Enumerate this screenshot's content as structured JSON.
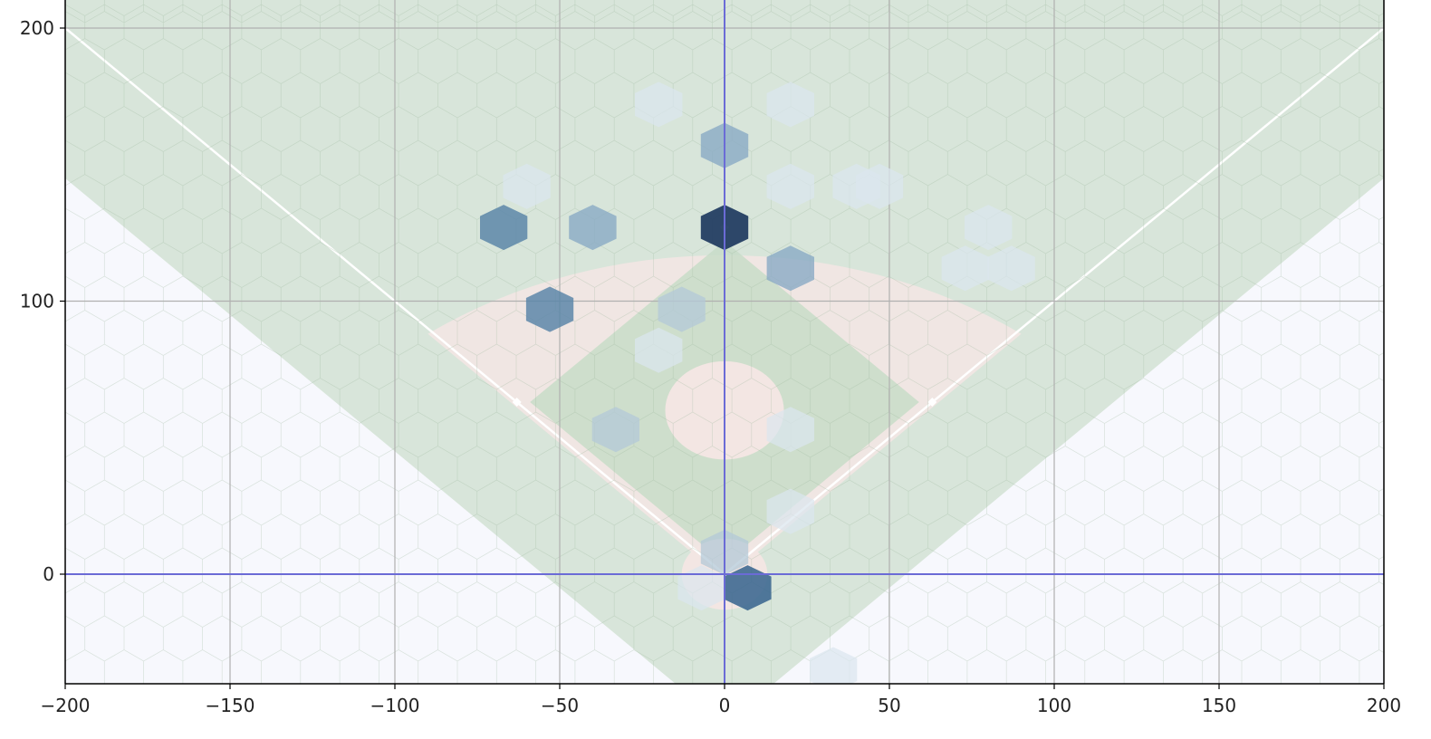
{
  "chart_data": {
    "type": "hexbin",
    "title": "",
    "xlabel": "",
    "ylabel": "",
    "xlim": [
      -200,
      200
    ],
    "ylim": [
      -40,
      210
    ],
    "grid": true,
    "x_ticks": [
      -200,
      -150,
      -100,
      -50,
      0,
      50,
      100,
      150,
      200
    ],
    "x_tick_labels": [
      "−200",
      "−150",
      "−100",
      "−50",
      "0",
      "50",
      "100",
      "150",
      "200"
    ],
    "y_ticks": [
      0,
      100,
      200
    ],
    "y_tick_labels": [
      "0",
      "100",
      "200"
    ],
    "reference_lines": {
      "x": 0,
      "y": 0,
      "color": "#6b6bd6"
    },
    "field": {
      "grass_color": "#c8dcc8",
      "dirt_color": "#f3e6e3",
      "background_color": "#f7f8fd",
      "line_color": "#ffffff",
      "foul_line_end": 200,
      "infield_arc_radius": 155,
      "mound": {
        "x": 0,
        "y": 60,
        "r": 18
      },
      "home_plate_circle": {
        "x": 0,
        "y": 0,
        "r": 13
      },
      "bases": [
        {
          "x": 63,
          "y": 63
        },
        {
          "x": 0,
          "y": 127
        },
        {
          "x": -63,
          "y": 63
        }
      ]
    },
    "hexbin": {
      "cell_radius": 8.3,
      "colormap": [
        "#dbe6ee",
        "#b4c9d8",
        "#8aaac4",
        "#5a86a8",
        "#3a6690",
        "#1e3a60"
      ],
      "bins": [
        {
          "x": -20,
          "y": 172,
          "count": 1
        },
        {
          "x": 20,
          "y": 172,
          "count": 1
        },
        {
          "x": 0,
          "y": 157,
          "count": 3
        },
        {
          "x": -60,
          "y": 142,
          "count": 1
        },
        {
          "x": 20,
          "y": 142,
          "count": 1
        },
        {
          "x": 40,
          "y": 142,
          "count": 1
        },
        {
          "x": 47,
          "y": 142,
          "count": 1
        },
        {
          "x": -67,
          "y": 127,
          "count": 4
        },
        {
          "x": -40,
          "y": 127,
          "count": 3
        },
        {
          "x": 0,
          "y": 127,
          "count": 6
        },
        {
          "x": 80,
          "y": 127,
          "count": 1
        },
        {
          "x": 20,
          "y": 112,
          "count": 3
        },
        {
          "x": 73,
          "y": 112,
          "count": 1
        },
        {
          "x": 87,
          "y": 112,
          "count": 1
        },
        {
          "x": -53,
          "y": 97,
          "count": 4
        },
        {
          "x": -13,
          "y": 97,
          "count": 2
        },
        {
          "x": -20,
          "y": 82,
          "count": 1
        },
        {
          "x": -33,
          "y": 53,
          "count": 2
        },
        {
          "x": 20,
          "y": 53,
          "count": 1
        },
        {
          "x": 20,
          "y": 23,
          "count": 1
        },
        {
          "x": 0,
          "y": 8,
          "count": 2
        },
        {
          "x": 7,
          "y": -5,
          "count": 5
        },
        {
          "x": -7,
          "y": -5,
          "count": 1
        },
        {
          "x": 33,
          "y": -35,
          "count": 1
        }
      ]
    }
  }
}
